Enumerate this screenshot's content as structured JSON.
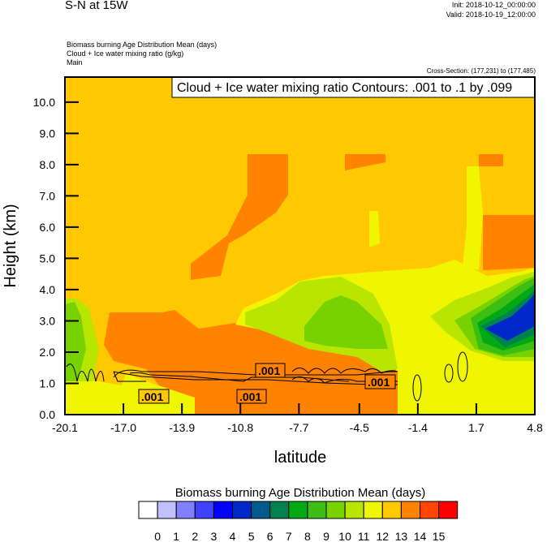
{
  "header": {
    "title": "S-N at 15W",
    "init": "Init: 2018-10-12_00:00:00",
    "valid": "Valid: 2018-10-19_12:00:00",
    "fields": [
      "Biomass burning Age Distribution Mean   (days)",
      "Cloud + Ice water mixing ratio   (g/kg)",
      "Main"
    ],
    "cross_section": "Cross-Section: (177,231) to (177,485)"
  },
  "chart_data": {
    "type": "heatmap",
    "title": "S-N at 15W",
    "xlabel": "latitude",
    "ylabel": "Height (km)",
    "xlim": [
      -20.1,
      4.8
    ],
    "ylim": [
      0.0,
      10.8
    ],
    "xticks": [
      "-20.1",
      "-17.0",
      "-13.9",
      "-10.8",
      "-7.7",
      "-4.5",
      "-1.4",
      "1.7",
      "4.8"
    ],
    "yticks": [
      "0.0",
      "1.0",
      "2.0",
      "3.0",
      "4.0",
      "5.0",
      "6.0",
      "7.0",
      "8.0",
      "9.0",
      "10.0"
    ],
    "contour_title": "Cloud + Ice water mixing ratio Contours: .001 to .1 by .099",
    "contour_labels": [
      ".001",
      ".001",
      ".001",
      ".001"
    ],
    "colorbar": {
      "title": "Biomass burning Age Distribution Mean  (days)",
      "labels": [
        "0",
        "1",
        "2",
        "3",
        "4",
        "5",
        "6",
        "7",
        "8",
        "9",
        "10",
        "11",
        "12",
        "13",
        "14",
        "15"
      ],
      "colors": [
        "#ffffff",
        "#c0c0ff",
        "#8080ff",
        "#4040ff",
        "#0000ff",
        "#0028c8",
        "#005a8c",
        "#008250",
        "#00aa14",
        "#3cbe14",
        "#78d200",
        "#b9e600",
        "#f0f500",
        "#ffc800",
        "#ff8200",
        "#ff4600",
        "#ff0000"
      ]
    }
  }
}
